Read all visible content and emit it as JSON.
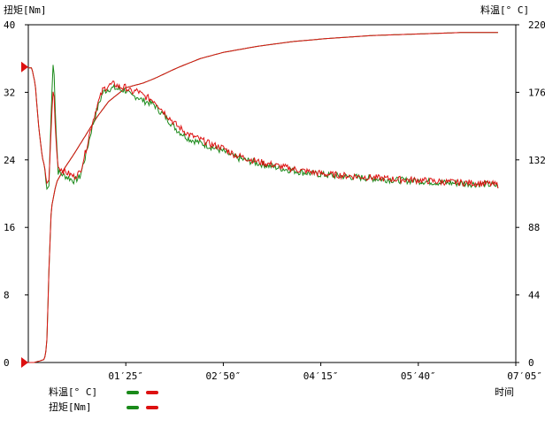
{
  "chart_data": {
    "type": "line",
    "left_axis_label": "扭矩[Nm]",
    "right_axis_label": "料温[° C]",
    "x_axis_label": "时间",
    "xlim": [
      0,
      425
    ],
    "ylim_left": [
      0,
      40
    ],
    "ylim_right": [
      0,
      220
    ],
    "y_ticks_left": [
      0,
      8,
      16,
      24,
      32,
      40
    ],
    "y_ticks_right": [
      0,
      44,
      88,
      132,
      176,
      220
    ],
    "x_ticks": [
      {
        "value": 85,
        "label": "01′25″"
      },
      {
        "value": 170,
        "label": "02′50″"
      },
      {
        "value": 255,
        "label": "04′15″"
      },
      {
        "value": 340,
        "label": "05′40″"
      },
      {
        "value": 425,
        "label": "07′05″"
      }
    ],
    "grid": false,
    "markers_left_axis": [
      35,
      0
    ],
    "legend": [
      {
        "label": "料温[° C]",
        "colors": [
          "#1a8a1a",
          "#dd1111"
        ]
      },
      {
        "label": "扭矩[Nm]",
        "colors": [
          "#1a8a1a",
          "#dd1111"
        ]
      }
    ],
    "series": [
      {
        "axis": "right",
        "color": "#1a8a1a",
        "x": [
          0,
          5,
          10,
          14,
          16,
          18,
          20,
          23,
          25,
          28,
          32,
          40,
          50,
          60,
          70,
          80,
          85,
          100,
          110,
          130,
          150,
          170,
          200,
          230,
          260,
          300,
          340,
          380,
          410
        ],
        "y": [
          0,
          0,
          1,
          2,
          10,
          60,
          100,
          112,
          118,
          122,
          127,
          136,
          148,
          160,
          170,
          176,
          179,
          182,
          185,
          192,
          198,
          202,
          206,
          209,
          211,
          213,
          214,
          215,
          215
        ]
      },
      {
        "axis": "right",
        "color": "#dd1111",
        "x": [
          0,
          5,
          10,
          14,
          16,
          18,
          20,
          23,
          25,
          28,
          32,
          40,
          50,
          60,
          70,
          80,
          85,
          100,
          110,
          130,
          150,
          170,
          200,
          230,
          260,
          300,
          340,
          380,
          410
        ],
        "y": [
          0,
          0,
          1,
          2,
          10,
          60,
          100,
          112,
          118,
          122,
          127,
          136,
          148,
          160,
          170,
          176,
          179,
          182,
          185,
          192,
          198,
          202,
          206,
          209,
          211,
          213,
          214,
          215,
          215
        ]
      },
      {
        "axis": "left",
        "color": "#1a8a1a",
        "x": [
          0,
          3,
          6,
          9,
          12,
          13,
          14,
          15,
          16,
          18,
          20,
          22,
          24,
          26,
          28,
          32,
          36,
          40,
          45,
          50,
          55,
          60,
          65,
          70,
          75,
          80,
          85,
          90,
          95,
          100,
          105,
          110,
          115,
          120,
          130,
          140,
          150,
          160,
          170,
          180,
          200,
          220,
          240,
          260,
          280,
          300,
          320,
          340,
          360,
          380,
          400,
          410
        ],
        "y": [
          34.9,
          34.9,
          33,
          28,
          24.5,
          23.8,
          23.4,
          22,
          20.5,
          20.9,
          30,
          36.5,
          28,
          22.6,
          22.4,
          22.1,
          21.8,
          21.5,
          22,
          24.5,
          27.5,
          30,
          32,
          32.4,
          32.5,
          32.3,
          32.2,
          31.5,
          31.5,
          31,
          30.8,
          30.5,
          29.7,
          29,
          27.5,
          26.5,
          26,
          25.5,
          25,
          24.3,
          23.6,
          23,
          22.5,
          22.2,
          22,
          21.8,
          21.6,
          21.5,
          21.3,
          21.2,
          21.1,
          20.9
        ]
      },
      {
        "axis": "left",
        "color": "#dd1111",
        "x": [
          0,
          3,
          6,
          9,
          12,
          13,
          14,
          15,
          16,
          18,
          20,
          22,
          24,
          26,
          28,
          32,
          36,
          40,
          45,
          50,
          55,
          60,
          65,
          70,
          75,
          80,
          85,
          90,
          95,
          100,
          105,
          110,
          115,
          120,
          130,
          140,
          150,
          160,
          170,
          180,
          200,
          220,
          240,
          260,
          280,
          300,
          320,
          340,
          360,
          380,
          400,
          410
        ],
        "y": [
          34.9,
          34.9,
          33,
          28,
          24.5,
          23.8,
          23.4,
          22.3,
          21.2,
          21.6,
          28,
          33,
          26.5,
          23.2,
          23,
          22.6,
          22.3,
          22,
          22.5,
          25,
          28,
          30.4,
          32.3,
          32.8,
          33,
          32.6,
          32.6,
          32,
          32.2,
          31.6,
          31.3,
          31,
          30.2,
          29.4,
          28,
          27,
          26.4,
          25.8,
          25.4,
          24.6,
          23.8,
          23.2,
          22.7,
          22.3,
          22.1,
          21.9,
          21.7,
          21.6,
          21.4,
          21.3,
          21.2,
          21
        ]
      }
    ]
  }
}
